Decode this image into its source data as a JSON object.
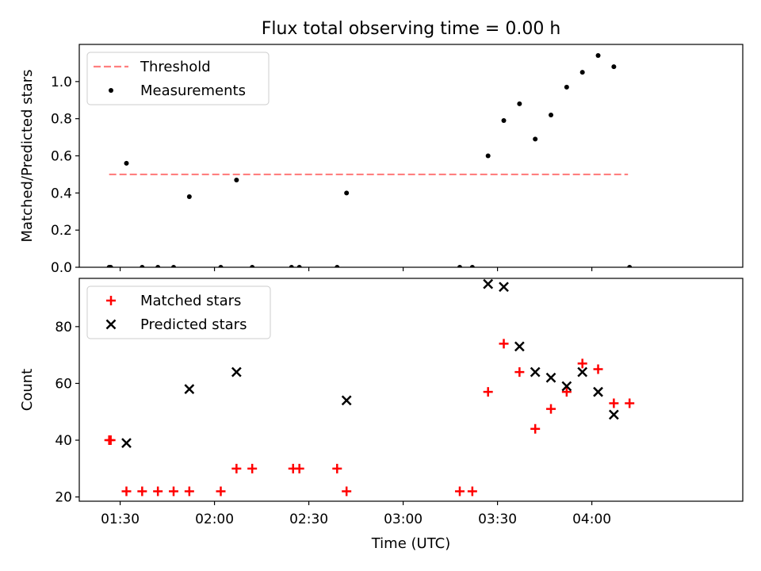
{
  "title": "Flux total observing time = 0.00 h",
  "xlabel": "Time (UTC)",
  "xticks": [
    {
      "t": "01:30",
      "label": "01:30"
    },
    {
      "t": "02:00",
      "label": "02:00"
    },
    {
      "t": "02:30",
      "label": "02:30"
    },
    {
      "t": "03:00",
      "label": "03:00"
    },
    {
      "t": "03:30",
      "label": "03:30"
    },
    {
      "t": "04:00",
      "label": "04:00"
    }
  ],
  "xlim": [
    "01:17:00",
    "04:48:00"
  ],
  "colors": {
    "threshold": "#ff7f7f",
    "measurements": "#000000",
    "matched": "#ff0000",
    "predicted": "#000000"
  },
  "chart_data": [
    {
      "type": "scatter",
      "ylabel": "Matched/Predicted stars",
      "ylim": [
        0,
        1.2
      ],
      "yticks": [
        0.0,
        0.2,
        0.4,
        0.6,
        0.8,
        1.0
      ],
      "ytick_labels": [
        "0.0",
        "0.2",
        "0.4",
        "0.6",
        "0.8",
        "1.0"
      ],
      "legend": {
        "position": "upper left",
        "entries": [
          "Threshold",
          "Measurements"
        ]
      },
      "series": [
        {
          "name": "Threshold",
          "style": "dashed-line",
          "x": [
            "01:26:30",
            "04:11:30"
          ],
          "y": [
            0.5,
            0.5
          ]
        },
        {
          "name": "Measurements",
          "style": "dot",
          "x": [
            "01:26:30",
            "01:27:00",
            "01:32:00",
            "01:37:00",
            "01:42:00",
            "01:47:00",
            "01:52:00",
            "02:02:00",
            "02:07:00",
            "02:12:00",
            "02:24:30",
            "02:27:00",
            "02:39:00",
            "02:42:00",
            "03:18:00",
            "03:22:00",
            "03:27:00",
            "03:32:00",
            "03:37:00",
            "03:42:00",
            "03:47:00",
            "03:52:00",
            "03:57:00",
            "04:02:00",
            "04:07:00",
            "04:12:00"
          ],
          "y": [
            0.0,
            0.0,
            0.56,
            0.0,
            0.0,
            0.0,
            0.38,
            0.0,
            0.47,
            0.0,
            0.0,
            0.0,
            0.0,
            0.4,
            0.0,
            0.0,
            0.6,
            0.79,
            0.88,
            0.69,
            0.82,
            0.97,
            1.05,
            1.14,
            1.08,
            0.0
          ]
        }
      ]
    },
    {
      "type": "scatter",
      "ylabel": "Count",
      "ylim": [
        18.5,
        97
      ],
      "yticks": [
        20,
        40,
        60,
        80
      ],
      "ytick_labels": [
        "20",
        "40",
        "60",
        "80"
      ],
      "legend": {
        "position": "upper left",
        "entries": [
          "Matched stars",
          "Predicted stars"
        ]
      },
      "series": [
        {
          "name": "Matched stars",
          "style": "plus",
          "x": [
            "01:26:30",
            "01:27:00",
            "01:32:00",
            "01:37:00",
            "01:42:00",
            "01:47:00",
            "01:52:00",
            "02:02:00",
            "02:07:00",
            "02:12:00",
            "02:25:00",
            "02:27:00",
            "02:39:00",
            "02:42:00",
            "03:18:00",
            "03:22:00",
            "03:27:00",
            "03:32:00",
            "03:37:00",
            "03:42:00",
            "03:47:00",
            "03:52:00",
            "03:57:00",
            "04:02:00",
            "04:07:00",
            "04:12:00"
          ],
          "y": [
            40,
            40,
            22,
            22,
            22,
            22,
            22,
            22,
            30,
            30,
            30,
            30,
            30,
            22,
            22,
            22,
            57,
            74,
            64,
            44,
            51,
            57,
            67,
            65,
            53,
            53
          ]
        },
        {
          "name": "Predicted stars",
          "style": "x",
          "x": [
            "01:32:00",
            "01:52:00",
            "02:07:00",
            "02:42:00",
            "03:27:00",
            "03:32:00",
            "03:37:00",
            "03:42:00",
            "03:47:00",
            "03:52:00",
            "03:57:00",
            "04:02:00",
            "04:07:00"
          ],
          "y": [
            39,
            58,
            64,
            54,
            95,
            94,
            73,
            64,
            62,
            59,
            64,
            57,
            49
          ]
        }
      ]
    }
  ]
}
